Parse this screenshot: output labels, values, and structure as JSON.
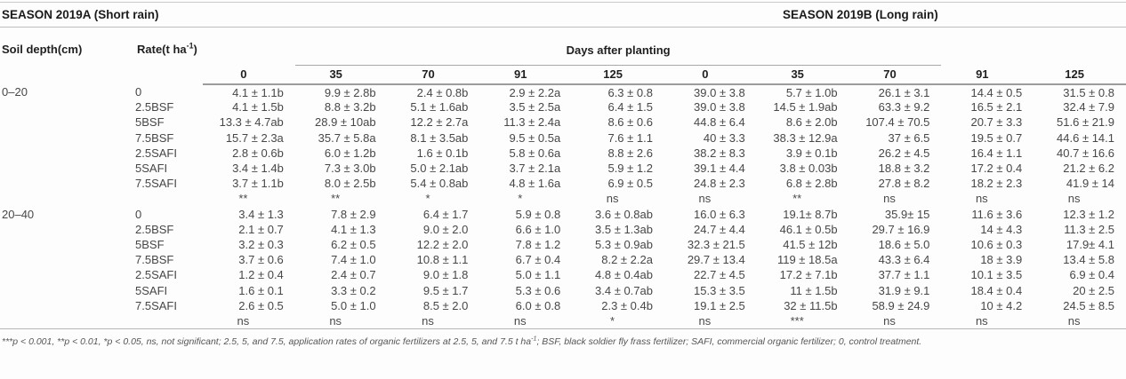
{
  "season_a": "SEASON 2019A (Short rain)",
  "season_b": "SEASON 2019B (Long rain)",
  "columns": {
    "soil_depth": "Soil depth(cm)",
    "rate_prefix": "Rate(t ha",
    "rate_sup": "-1",
    "rate_suffix": ")",
    "group_header": "Days after planting",
    "days": [
      "0",
      "35",
      "70",
      "91",
      "125",
      "0",
      "35",
      "70",
      "91",
      "125"
    ]
  },
  "blocks": [
    {
      "depth": "0–20",
      "rows": [
        {
          "rate": "0",
          "values": [
            "4.1 ± 1.1b",
            "9.9 ± 2.8b",
            "2.4 ± 0.8b",
            "2.9 ± 2.2a",
            "6.3 ± 0.8",
            "39.0 ± 3.8",
            "5.7 ± 1.0b",
            "26.1 ± 3.1",
            "14.4 ± 0.5",
            "31.5 ± 0.8"
          ]
        },
        {
          "rate": "2.5BSF",
          "values": [
            "4.1 ± 1.5b",
            "8.8 ± 3.2b",
            "5.1 ± 1.6ab",
            "3.5 ± 2.5a",
            "6.4 ± 1.5",
            "39.0 ± 3.8",
            "14.5 ± 1.9ab",
            "63.3 ± 9.2",
            "16.5 ± 2.1",
            "32.4 ± 7.9"
          ]
        },
        {
          "rate": "5BSF",
          "values": [
            "13.3 ± 4.7ab",
            "28.9 ± 10ab",
            "12.2 ± 2.7a",
            "11.3 ± 2.4a",
            "8.6 ± 0.6",
            "44.8 ± 6.4",
            "8.6 ± 2.0b",
            "107.4 ± 70.5",
            "20.7 ± 3.3",
            "51.6 ± 21.9"
          ]
        },
        {
          "rate": "7.5BSF",
          "values": [
            "15.7 ± 2.3a",
            "35.7 ± 5.8a",
            "8.1 ± 3.5ab",
            "9.5 ± 0.5a",
            "7.6 ± 1.1",
            "40 ± 3.3",
            "38.3 ± 12.9a",
            "37 ± 6.5",
            "19.5 ± 0.7",
            "44.6 ± 14.1"
          ]
        },
        {
          "rate": "2.5SAFI",
          "values": [
            "2.8 ± 0.6b",
            "6.0 ± 1.2b",
            "1.6 ± 0.1b",
            "5.8 ± 0.6a",
            "8.8 ± 2.6",
            "38.2 ± 8.3",
            "3.9 ± 0.1b",
            "26.2 ± 4.5",
            "16.4 ± 1.1",
            "40.7 ± 16.6"
          ]
        },
        {
          "rate": "5SAFI",
          "values": [
            "3.4 ± 1.4b",
            "7.3 ± 3.0b",
            "5.0 ± 2.1ab",
            "3.7 ± 2.1a",
            "5.9 ± 1.2",
            "39.1 ± 4.4",
            "3.8 ± 0.03b",
            "18.8 ± 3.2",
            "17.2 ± 0.4",
            "21.2 ± 6.2"
          ]
        },
        {
          "rate": "7.5SAFI",
          "values": [
            "3.7 ± 1.1b",
            "8.0 ± 2.5b",
            "5.4 ± 0.8ab",
            "4.8 ± 1.6a",
            "6.9 ± 0.5",
            "24.8 ± 2.3",
            "6.8 ± 2.8b",
            "27.8 ± 8.2",
            "18.2 ± 2.3",
            "41.9 ± 14"
          ]
        }
      ],
      "significance": [
        "**",
        "**",
        "*",
        "*",
        "ns",
        "ns",
        "**",
        "ns",
        "ns",
        "ns"
      ]
    },
    {
      "depth": "20–40",
      "rows": [
        {
          "rate": "0",
          "values": [
            "3.4 ± 1.3",
            "7.8 ± 2.9",
            "6.4 ± 1.7",
            "5.9 ± 0.8",
            "3.6 ± 0.8ab",
            "16.0 ± 6.3",
            "19.1± 8.7b",
            "35.9± 15",
            "11.6 ± 3.6",
            "12.3 ± 1.2"
          ]
        },
        {
          "rate": "2.5BSF",
          "values": [
            "2.1 ± 0.7",
            "4.1 ± 1.3",
            "9.0 ± 2.0",
            "6.6 ± 1.0",
            "3.5 ± 1.3ab",
            "24.7 ± 4.4",
            "46.1 ± 0.5b",
            "29.7 ± 16.9",
            "14 ± 4.3",
            "11.3 ± 2.5"
          ]
        },
        {
          "rate": "5BSF",
          "values": [
            "3.2 ± 0.3",
            "6.2 ± 0.5",
            "12.2 ± 2.0",
            "7.8 ± 1.2",
            "5.3 ± 0.9ab",
            "32.3 ± 21.5",
            "41.5 ± 12b",
            "18.6 ± 5.0",
            "10.6 ± 0.3",
            "17.9± 4.1"
          ]
        },
        {
          "rate": "7.5BSF",
          "values": [
            "3.7 ± 0.6",
            "7.4 ± 1.0",
            "10.8 ± 1.1",
            "6.7 ± 0.4",
            "8.2 ± 2.2a",
            "29.7 ± 13.4",
            "119 ± 18.5a",
            "43.3 ± 6.4",
            "18 ± 3.9",
            "13.4 ± 5.8"
          ]
        },
        {
          "rate": "2.5SAFI",
          "values": [
            "1.2 ± 0.4",
            "2.4 ± 0.7",
            "9.0 ± 1.8",
            "5.0 ± 1.1",
            "4.8 ± 0.4ab",
            "22.7 ± 4.5",
            "17.2 ± 7.1b",
            "37.7 ± 1.1",
            "10.1 ± 3.5",
            "6.9 ± 0.4"
          ]
        },
        {
          "rate": "5SAFI",
          "values": [
            "1.6 ± 0.1",
            "3.3 ± 0.2",
            "9.5 ± 1.7",
            "5.3 ± 0.6",
            "3.4 ± 0.7ab",
            "15.3 ± 3.5",
            "11 ± 1.5b",
            "31.9 ± 9.1",
            "18.4 ± 0.4",
            "20 ± 2.5"
          ]
        },
        {
          "rate": "7.5SAFI",
          "values": [
            "2.6 ± 0.5",
            "5.0 ± 1.0",
            "8.5 ± 2.0",
            "6.0 ± 0.8",
            "2.3 ± 0.4b",
            "19.1 ± 2.5",
            "32 ± 11.5b",
            "58.9 ± 24.9",
            "10 ± 4.2",
            "24.5 ± 8.5"
          ]
        }
      ],
      "significance": [
        "ns",
        "ns",
        "ns",
        "ns",
        "*",
        "ns",
        "***",
        "ns",
        "ns",
        "ns"
      ]
    }
  ],
  "footnote": {
    "pre": "***p < 0.001, **p < 0.01, *p < 0.05, ns, not significant; 2.5, 5, and 7.5, application rates of organic fertilizers at 2.5, 5, and 7.5 t ha",
    "sup": "-1",
    "post": "; BSF, black soldier fly frass fertilizer; SAFI, commercial organic fertilizer; 0, control treatment."
  }
}
